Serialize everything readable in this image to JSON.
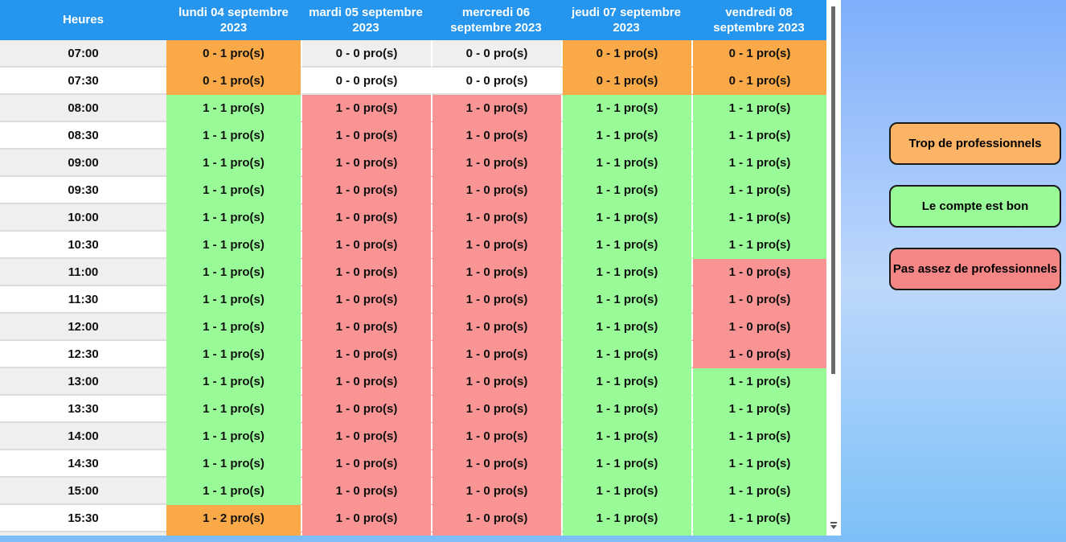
{
  "table": {
    "time_header": "Heures",
    "day_headers": [
      "lundi 04 septembre 2023",
      "mardi 05 septembre 2023",
      "mercredi 06 septembre 2023",
      "jeudi 07 septembre 2023",
      "vendredi 08 septembre 2023"
    ],
    "rows": [
      {
        "time": "07:00",
        "cells": [
          {
            "text": "0 - 1 pro(s)",
            "status": "over"
          },
          {
            "text": "0 - 0 pro(s)",
            "status": "none"
          },
          {
            "text": "0 - 0 pro(s)",
            "status": "none"
          },
          {
            "text": "0 - 1 pro(s)",
            "status": "over"
          },
          {
            "text": "0 - 1 pro(s)",
            "status": "over"
          }
        ]
      },
      {
        "time": "07:30",
        "cells": [
          {
            "text": "0 - 1 pro(s)",
            "status": "over"
          },
          {
            "text": "0 - 0 pro(s)",
            "status": "none"
          },
          {
            "text": "0 - 0 pro(s)",
            "status": "none"
          },
          {
            "text": "0 - 1 pro(s)",
            "status": "over"
          },
          {
            "text": "0 - 1 pro(s)",
            "status": "over"
          }
        ]
      },
      {
        "time": "08:00",
        "cells": [
          {
            "text": "1 - 1 pro(s)",
            "status": "ok"
          },
          {
            "text": "1 - 0 pro(s)",
            "status": "under"
          },
          {
            "text": "1 - 0 pro(s)",
            "status": "under"
          },
          {
            "text": "1 - 1 pro(s)",
            "status": "ok"
          },
          {
            "text": "1 - 1 pro(s)",
            "status": "ok"
          }
        ]
      },
      {
        "time": "08:30",
        "cells": [
          {
            "text": "1 - 1 pro(s)",
            "status": "ok"
          },
          {
            "text": "1 - 0 pro(s)",
            "status": "under"
          },
          {
            "text": "1 - 0 pro(s)",
            "status": "under"
          },
          {
            "text": "1 - 1 pro(s)",
            "status": "ok"
          },
          {
            "text": "1 - 1 pro(s)",
            "status": "ok"
          }
        ]
      },
      {
        "time": "09:00",
        "cells": [
          {
            "text": "1 - 1 pro(s)",
            "status": "ok"
          },
          {
            "text": "1 - 0 pro(s)",
            "status": "under"
          },
          {
            "text": "1 - 0 pro(s)",
            "status": "under"
          },
          {
            "text": "1 - 1 pro(s)",
            "status": "ok"
          },
          {
            "text": "1 - 1 pro(s)",
            "status": "ok"
          }
        ]
      },
      {
        "time": "09:30",
        "cells": [
          {
            "text": "1 - 1 pro(s)",
            "status": "ok"
          },
          {
            "text": "1 - 0 pro(s)",
            "status": "under"
          },
          {
            "text": "1 - 0 pro(s)",
            "status": "under"
          },
          {
            "text": "1 - 1 pro(s)",
            "status": "ok"
          },
          {
            "text": "1 - 1 pro(s)",
            "status": "ok"
          }
        ]
      },
      {
        "time": "10:00",
        "cells": [
          {
            "text": "1 - 1 pro(s)",
            "status": "ok"
          },
          {
            "text": "1 - 0 pro(s)",
            "status": "under"
          },
          {
            "text": "1 - 0 pro(s)",
            "status": "under"
          },
          {
            "text": "1 - 1 pro(s)",
            "status": "ok"
          },
          {
            "text": "1 - 1 pro(s)",
            "status": "ok"
          }
        ]
      },
      {
        "time": "10:30",
        "cells": [
          {
            "text": "1 - 1 pro(s)",
            "status": "ok"
          },
          {
            "text": "1 - 0 pro(s)",
            "status": "under"
          },
          {
            "text": "1 - 0 pro(s)",
            "status": "under"
          },
          {
            "text": "1 - 1 pro(s)",
            "status": "ok"
          },
          {
            "text": "1 - 1 pro(s)",
            "status": "ok"
          }
        ]
      },
      {
        "time": "11:00",
        "cells": [
          {
            "text": "1 - 1 pro(s)",
            "status": "ok"
          },
          {
            "text": "1 - 0 pro(s)",
            "status": "under"
          },
          {
            "text": "1 - 0 pro(s)",
            "status": "under"
          },
          {
            "text": "1 - 1 pro(s)",
            "status": "ok"
          },
          {
            "text": "1 - 0 pro(s)",
            "status": "under"
          }
        ]
      },
      {
        "time": "11:30",
        "cells": [
          {
            "text": "1 - 1 pro(s)",
            "status": "ok"
          },
          {
            "text": "1 - 0 pro(s)",
            "status": "under"
          },
          {
            "text": "1 - 0 pro(s)",
            "status": "under"
          },
          {
            "text": "1 - 1 pro(s)",
            "status": "ok"
          },
          {
            "text": "1 - 0 pro(s)",
            "status": "under"
          }
        ]
      },
      {
        "time": "12:00",
        "cells": [
          {
            "text": "1 - 1 pro(s)",
            "status": "ok"
          },
          {
            "text": "1 - 0 pro(s)",
            "status": "under"
          },
          {
            "text": "1 - 0 pro(s)",
            "status": "under"
          },
          {
            "text": "1 - 1 pro(s)",
            "status": "ok"
          },
          {
            "text": "1 - 0 pro(s)",
            "status": "under"
          }
        ]
      },
      {
        "time": "12:30",
        "cells": [
          {
            "text": "1 - 1 pro(s)",
            "status": "ok"
          },
          {
            "text": "1 - 0 pro(s)",
            "status": "under"
          },
          {
            "text": "1 - 0 pro(s)",
            "status": "under"
          },
          {
            "text": "1 - 1 pro(s)",
            "status": "ok"
          },
          {
            "text": "1 - 0 pro(s)",
            "status": "under"
          }
        ]
      },
      {
        "time": "13:00",
        "cells": [
          {
            "text": "1 - 1 pro(s)",
            "status": "ok"
          },
          {
            "text": "1 - 0 pro(s)",
            "status": "under"
          },
          {
            "text": "1 - 0 pro(s)",
            "status": "under"
          },
          {
            "text": "1 - 1 pro(s)",
            "status": "ok"
          },
          {
            "text": "1 - 1 pro(s)",
            "status": "ok"
          }
        ]
      },
      {
        "time": "13:30",
        "cells": [
          {
            "text": "1 - 1 pro(s)",
            "status": "ok"
          },
          {
            "text": "1 - 0 pro(s)",
            "status": "under"
          },
          {
            "text": "1 - 0 pro(s)",
            "status": "under"
          },
          {
            "text": "1 - 1 pro(s)",
            "status": "ok"
          },
          {
            "text": "1 - 1 pro(s)",
            "status": "ok"
          }
        ]
      },
      {
        "time": "14:00",
        "cells": [
          {
            "text": "1 - 1 pro(s)",
            "status": "ok"
          },
          {
            "text": "1 - 0 pro(s)",
            "status": "under"
          },
          {
            "text": "1 - 0 pro(s)",
            "status": "under"
          },
          {
            "text": "1 - 1 pro(s)",
            "status": "ok"
          },
          {
            "text": "1 - 1 pro(s)",
            "status": "ok"
          }
        ]
      },
      {
        "time": "14:30",
        "cells": [
          {
            "text": "1 - 1 pro(s)",
            "status": "ok"
          },
          {
            "text": "1 - 0 pro(s)",
            "status": "under"
          },
          {
            "text": "1 - 0 pro(s)",
            "status": "under"
          },
          {
            "text": "1 - 1 pro(s)",
            "status": "ok"
          },
          {
            "text": "1 - 1 pro(s)",
            "status": "ok"
          }
        ]
      },
      {
        "time": "15:00",
        "cells": [
          {
            "text": "1 - 1 pro(s)",
            "status": "ok"
          },
          {
            "text": "1 - 0 pro(s)",
            "status": "under"
          },
          {
            "text": "1 - 0 pro(s)",
            "status": "under"
          },
          {
            "text": "1 - 1 pro(s)",
            "status": "ok"
          },
          {
            "text": "1 - 1 pro(s)",
            "status": "ok"
          }
        ]
      },
      {
        "time": "15:30",
        "cells": [
          {
            "text": "1 - 2 pro(s)",
            "status": "over"
          },
          {
            "text": "1 - 0 pro(s)",
            "status": "under"
          },
          {
            "text": "1 - 0 pro(s)",
            "status": "under"
          },
          {
            "text": "1 - 1 pro(s)",
            "status": "ok"
          },
          {
            "text": "1 - 1 pro(s)",
            "status": "ok"
          }
        ]
      },
      {
        "time": "",
        "partial": true,
        "cells": [
          {
            "text": "",
            "status": "over"
          },
          {
            "text": "",
            "status": "under"
          },
          {
            "text": "",
            "status": "under"
          },
          {
            "text": "",
            "status": "ok"
          },
          {
            "text": "",
            "status": "ok"
          }
        ]
      }
    ]
  },
  "legend": {
    "buttons": [
      {
        "label": "Trop de professionnels",
        "status": "over"
      },
      {
        "label": "Le compte est bon",
        "status": "ok"
      },
      {
        "label": "Pas assez de professionnels",
        "status": "under"
      }
    ]
  },
  "colors": {
    "header_bg": "#2595EE",
    "cell_over": "#F9A948",
    "cell_ok": "#98FB98",
    "cell_under": "#F89494",
    "legend_over": "#FBB366",
    "legend_ok": "#98FB98",
    "legend_under": "#F48686",
    "row_alt": "#EFEFEF",
    "row_base": "#FFFFFF",
    "page_gradient_top": "#7FAFFB",
    "page_gradient_mid": "#BDD8FB",
    "page_gradient_bottom": "#7CC0F8",
    "bottom_bar": "#7DBEF8"
  }
}
